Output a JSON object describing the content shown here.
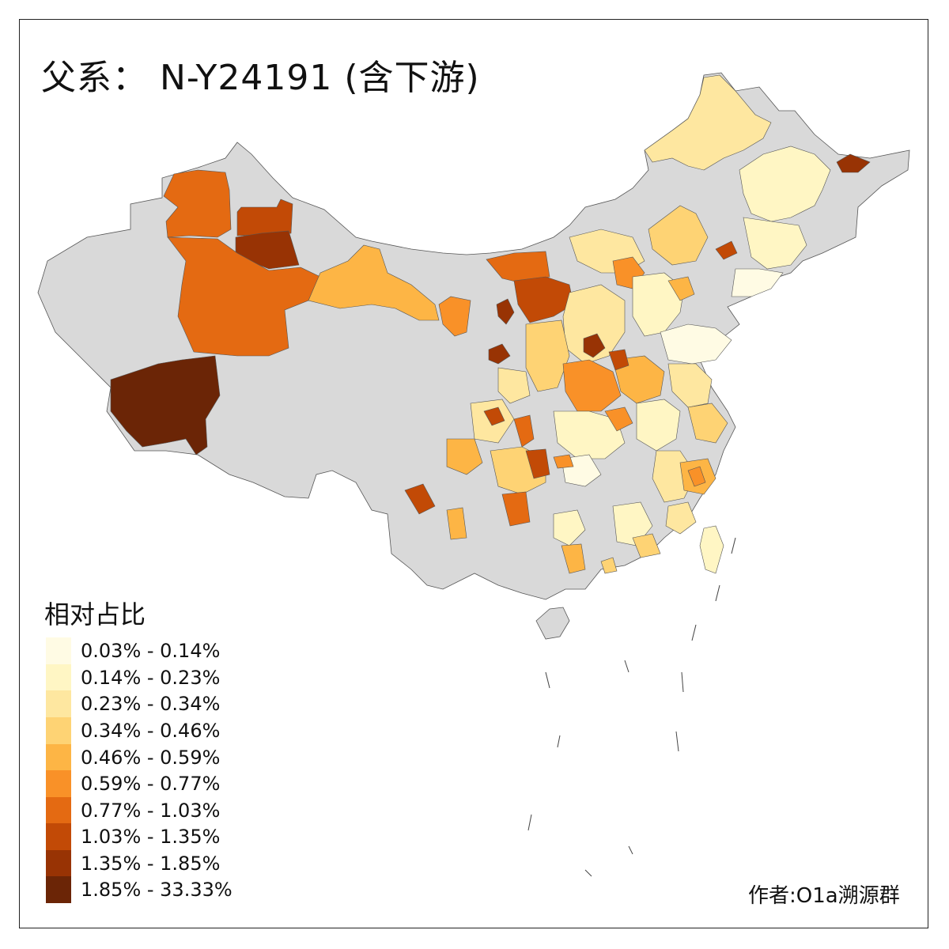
{
  "title": "父系： N-Y24191 (含下游)",
  "legend": {
    "title": "相对占比",
    "items": [
      {
        "label": "0.03% - 0.14%",
        "color": "#FFFBE4"
      },
      {
        "label": "0.14% - 0.23%",
        "color": "#FFF6C4"
      },
      {
        "label": "0.23% - 0.34%",
        "color": "#FEE7A0"
      },
      {
        "label": "0.34% - 0.46%",
        "color": "#FED374"
      },
      {
        "label": "0.46% - 0.59%",
        "color": "#FDB545"
      },
      {
        "label": "0.59% - 0.77%",
        "color": "#F99128"
      },
      {
        "label": "0.77% - 1.03%",
        "color": "#E46A12"
      },
      {
        "label": "1.03% - 1.35%",
        "color": "#C24A06"
      },
      {
        "label": "1.35% - 1.85%",
        "color": "#983304"
      },
      {
        "label": "1.85% - 33.33%",
        "color": "#6B2506"
      }
    ]
  },
  "credit": "作者:O1a溯源群",
  "colors": {
    "no_data": "#D9D9D9",
    "border": "#555555"
  }
}
